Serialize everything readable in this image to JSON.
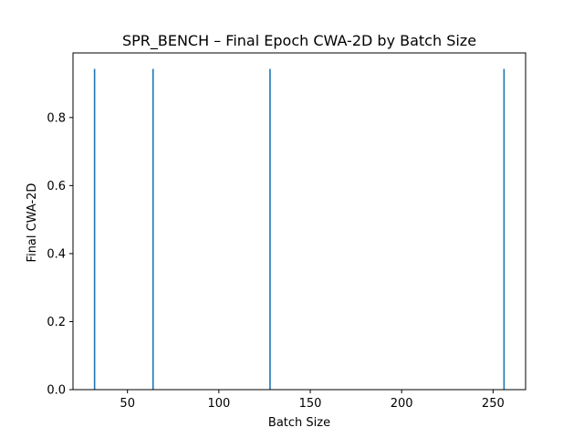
{
  "chart_data": {
    "type": "bar",
    "title": "SPR_BENCH – Final Epoch CWA-2D by Batch Size",
    "xlabel": "Batch Size",
    "ylabel": "Final CWA-2D",
    "x": [
      32,
      64,
      128,
      256
    ],
    "values": [
      0.943,
      0.943,
      0.943,
      0.943
    ],
    "bar_width": 0.8,
    "xlim": [
      20.2,
      267.8
    ],
    "ylim": [
      0,
      0.99
    ],
    "xticks": [
      50,
      100,
      150,
      200,
      250
    ],
    "xtick_labels": [
      "50",
      "100",
      "150",
      "200",
      "250"
    ],
    "yticks": [
      0.0,
      0.2,
      0.4,
      0.6,
      0.8
    ],
    "ytick_labels": [
      "0.0",
      "0.2",
      "0.4",
      "0.6",
      "0.8"
    ],
    "grid": false,
    "legend": "none",
    "bar_color": "#1f77b4"
  }
}
